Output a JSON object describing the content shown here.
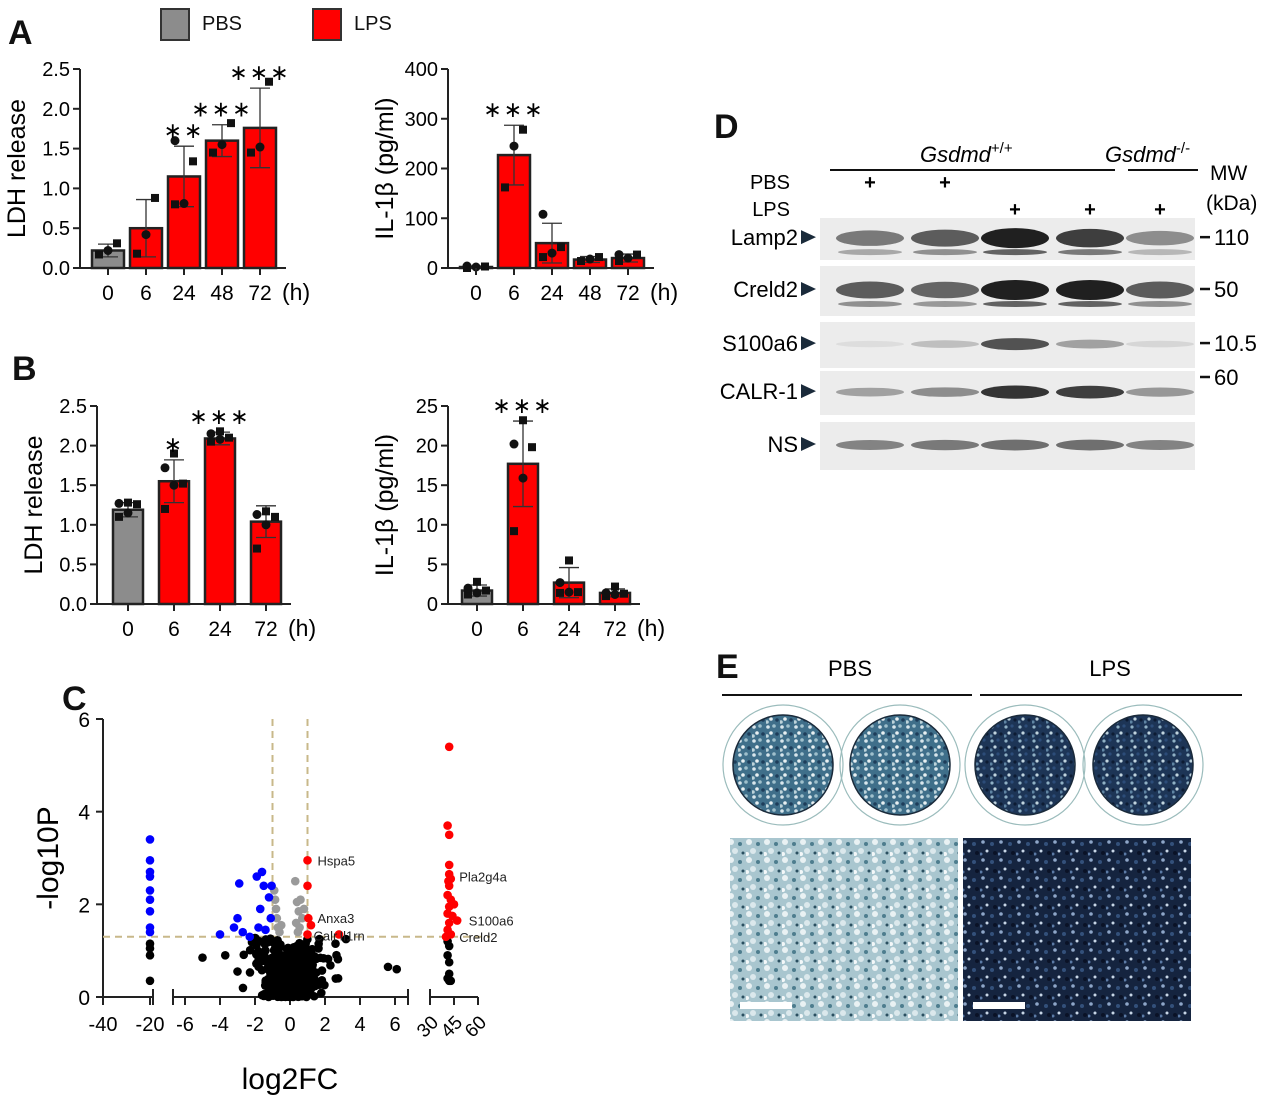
{
  "legend": {
    "items": [
      {
        "label": "PBS",
        "color": "#8c8c8c"
      },
      {
        "label": "LPS",
        "color": "#ff0000"
      }
    ]
  },
  "panels": {
    "A": "A",
    "B": "B",
    "C": "C",
    "D": "D",
    "E": "E"
  },
  "chart_data": [
    {
      "id": "A-left",
      "type": "bar",
      "panel": "A",
      "title": "",
      "xlabel": "(h)",
      "ylabel": "LDH release",
      "categories": [
        "0",
        "6",
        "24",
        "48",
        "72"
      ],
      "values": [
        0.22,
        0.5,
        1.15,
        1.6,
        1.76
      ],
      "errors": [
        0.08,
        0.36,
        0.38,
        0.2,
        0.5
      ],
      "colors": [
        "#8c8c8c",
        "#ff0000",
        "#ff0000",
        "#ff0000",
        "#ff0000"
      ],
      "significance": [
        "",
        "",
        "**",
        "***",
        "***"
      ],
      "points": [
        [
          0.17,
          0.22,
          0.31
        ],
        [
          0.18,
          0.42,
          0.88
        ],
        [
          0.8,
          0.81,
          1.34,
          1.6
        ],
        [
          1.45,
          1.55,
          1.82
        ],
        [
          1.45,
          1.52,
          2.34
        ]
      ],
      "ylim": [
        0,
        2.5
      ],
      "yticks": [
        "0.0",
        "0.5",
        "1.0",
        "1.5",
        "2.0",
        "2.5"
      ]
    },
    {
      "id": "A-right",
      "type": "bar",
      "panel": "A",
      "title": "",
      "xlabel": "(h)",
      "ylabel": "IL-1β (pg/ml)",
      "categories": [
        "0",
        "6",
        "24",
        "48",
        "72"
      ],
      "values": [
        2,
        227,
        50,
        17,
        20
      ],
      "errors": [
        2,
        60,
        40,
        6,
        8
      ],
      "colors": [
        "#8c8c8c",
        "#ff0000",
        "#ff0000",
        "#ff0000",
        "#ff0000"
      ],
      "significance": [
        "",
        "***",
        "",
        "",
        ""
      ],
      "points": [
        [
          0,
          2,
          3,
          4
        ],
        [
          162,
          245,
          278
        ],
        [
          22,
          30,
          42,
          108
        ],
        [
          14,
          18,
          22
        ],
        [
          14,
          20,
          27,
          27
        ]
      ],
      "ylim": [
        0,
        400
      ],
      "yticks": [
        "0",
        "100",
        "200",
        "300",
        "400"
      ]
    },
    {
      "id": "B-left",
      "type": "bar",
      "panel": "B",
      "title": "",
      "xlabel": "(h)",
      "ylabel": "LDH release",
      "categories": [
        "0",
        "6",
        "24",
        "72"
      ],
      "values": [
        1.19,
        1.55,
        2.09,
        1.04
      ],
      "errors": [
        0.09,
        0.27,
        0.08,
        0.2
      ],
      "colors": [
        "#8c8c8c",
        "#ff0000",
        "#ff0000",
        "#ff0000"
      ],
      "significance": [
        "",
        "*",
        "***",
        ""
      ],
      "points": [
        [
          1.1,
          1.15,
          1.26,
          1.27,
          1.28
        ],
        [
          1.2,
          1.5,
          1.52,
          1.72,
          1.9
        ],
        [
          2.05,
          2.08,
          2.1,
          2.15,
          2.18
        ],
        [
          0.7,
          1.0,
          1.1,
          1.13,
          1.17
        ]
      ],
      "ylim": [
        0,
        2.5
      ],
      "yticks": [
        "0.0",
        "0.5",
        "1.0",
        "1.5",
        "2.0",
        "2.5"
      ]
    },
    {
      "id": "B-right",
      "type": "bar",
      "panel": "B",
      "title": "",
      "xlabel": "(h)",
      "ylabel": "IL-1β (pg/ml)",
      "categories": [
        "0",
        "6",
        "24",
        "72"
      ],
      "values": [
        1.7,
        17.7,
        2.7,
        1.4
      ],
      "errors": [
        0.7,
        5.4,
        1.9,
        0.5
      ],
      "colors": [
        "#8c8c8c",
        "#ff0000",
        "#ff0000",
        "#ff0000"
      ],
      "significance": [
        "",
        "***",
        "",
        ""
      ],
      "points": [
        [
          1.2,
          1.4,
          1.7,
          2.0,
          2.8
        ],
        [
          9.2,
          15.9,
          19.8,
          20.2,
          23.2
        ],
        [
          1.4,
          1.5,
          1.5,
          2.7,
          5.5
        ],
        [
          1.0,
          1.2,
          1.3,
          1.4,
          2.2
        ]
      ],
      "ylim": [
        0,
        25
      ],
      "yticks": [
        "0",
        "5",
        "10",
        "15",
        "20",
        "25"
      ]
    },
    {
      "id": "C-volcano",
      "type": "scatter",
      "panel": "C",
      "title": "",
      "xlabel": "log2FC",
      "ylabel": "-log10P",
      "ylim": [
        0,
        6
      ],
      "yticks": [
        "0",
        "2",
        "4",
        "6"
      ],
      "xsegments": [
        {
          "range": [
            -40,
            -20
          ],
          "ticks": [
            "-40",
            "-20"
          ]
        },
        {
          "range": [
            -7,
            7
          ],
          "ticks": [
            "-6",
            "-4",
            "-2",
            "0",
            "2",
            "4",
            "6"
          ]
        },
        {
          "range": [
            30,
            60
          ],
          "ticks": [
            "30",
            "45",
            "60"
          ]
        }
      ],
      "thresholds": {
        "log2fc": [
          -1,
          1
        ],
        "neg_log10p": 1.3
      },
      "groups": [
        {
          "name": "down",
          "color": "#0000ff"
        },
        {
          "name": "up",
          "color": "#ff0000"
        },
        {
          "name": "fc-not-significant",
          "color": "#999999"
        },
        {
          "name": "not-significant",
          "color": "#000000"
        }
      ],
      "labeled_points": [
        {
          "label": "Hspa5",
          "x": 1.0,
          "y": 2.95
        },
        {
          "label": "Anxa3",
          "x": 1.1,
          "y": 1.7
        },
        {
          "label": "Calr",
          "x": 1.0,
          "y": 1.35
        },
        {
          "label": "Il1rn",
          "x": 2.8,
          "y": 1.35
        },
        {
          "label": "Pla2g4a",
          "x": 42,
          "y": 2.6
        },
        {
          "label": "S100a6",
          "x": 48,
          "y": 1.65
        },
        {
          "label": "Creld2",
          "x": 42,
          "y": 1.3
        }
      ],
      "points_blue": [
        [
          -20,
          3.4
        ],
        [
          -20,
          2.95
        ],
        [
          -20,
          2.7
        ],
        [
          -20,
          2.6
        ],
        [
          -20,
          2.3
        ],
        [
          -20,
          2.1
        ],
        [
          -20,
          1.85
        ],
        [
          -20,
          1.5
        ],
        [
          -20,
          1.4
        ],
        [
          -4,
          1.35
        ],
        [
          -3.2,
          1.5
        ],
        [
          -3,
          1.7
        ],
        [
          -2.9,
          2.45
        ],
        [
          -2.7,
          1.4
        ],
        [
          -2.3,
          1.3
        ],
        [
          -1.9,
          2.6
        ],
        [
          -1.8,
          1.5
        ],
        [
          -1.6,
          2.7
        ],
        [
          -1.5,
          2.4
        ],
        [
          -1.7,
          1.9
        ],
        [
          -1.2,
          2.15
        ],
        [
          -1.4,
          1.45
        ],
        [
          -1.1,
          1.7
        ],
        [
          -1.05,
          2.4
        ]
      ],
      "points_red_right": [
        [
          42,
          5.4
        ],
        [
          41,
          3.7
        ],
        [
          42,
          3.5
        ],
        [
          42,
          2.85
        ],
        [
          42,
          2.65
        ],
        [
          43,
          2.55
        ],
        [
          41.5,
          2.5
        ],
        [
          42,
          2.4
        ],
        [
          41,
          2.2
        ],
        [
          43,
          2.1
        ],
        [
          45,
          2.0
        ],
        [
          42,
          1.95
        ],
        [
          41,
          1.8
        ],
        [
          44,
          1.75
        ],
        [
          42,
          1.6
        ],
        [
          47,
          1.65
        ],
        [
          41,
          1.45
        ],
        [
          43,
          1.35
        ],
        [
          40,
          1.3
        ]
      ],
      "points_black_right": [
        [
          41,
          1.2
        ],
        [
          42,
          1.1
        ],
        [
          41,
          0.9
        ],
        [
          42,
          0.75
        ],
        [
          41,
          0.4
        ],
        [
          42,
          0.35
        ],
        [
          43,
          0.35
        ],
        [
          42,
          0.5
        ]
      ],
      "points_black_left": [
        [
          -20,
          1.15
        ],
        [
          -20,
          1.05
        ],
        [
          -20,
          0.9
        ],
        [
          -20,
          0.35
        ]
      ],
      "points_black_mid": [
        [
          -5,
          0.85
        ],
        [
          -3.7,
          0.9
        ],
        [
          -3,
          0.55
        ],
        [
          5.6,
          0.65
        ],
        [
          6.1,
          0.6
        ],
        [
          3.2,
          1.25
        ],
        [
          2.6,
          1.15
        ]
      ]
    }
  ],
  "western_blot": {
    "panel": "D",
    "genotype_labels": [
      {
        "name": "Gsdmd",
        "sup": "+/+"
      },
      {
        "name": "Gsdmd",
        "sup": "-/-"
      }
    ],
    "treatments": [
      {
        "label": "PBS",
        "lanes": [
          "+",
          "+",
          "",
          "",
          ""
        ]
      },
      {
        "label": "LPS",
        "lanes": [
          "",
          "",
          "+",
          "+",
          "+"
        ]
      }
    ],
    "mw_header": [
      "MW",
      "(kDa)"
    ],
    "rows": [
      {
        "label": "Lamp2",
        "mw": "110",
        "intensity": [
          0.55,
          0.7,
          1.0,
          0.85,
          0.45
        ],
        "style": "dark"
      },
      {
        "label": "Creld2",
        "mw": "50",
        "intensity": [
          0.7,
          0.65,
          1.0,
          1.0,
          0.7
        ],
        "style": "dark"
      },
      {
        "label": "S100a6",
        "mw": "10.5",
        "intensity": [
          0.05,
          0.2,
          0.75,
          0.35,
          0.08
        ],
        "style": "grey"
      },
      {
        "label": "CALR-1",
        "mw": "60",
        "intensity": [
          0.35,
          0.45,
          0.9,
          0.85,
          0.4
        ],
        "style": "grey"
      },
      {
        "label": "NS",
        "mw": "",
        "intensity": [
          0.5,
          0.55,
          0.6,
          0.6,
          0.5
        ],
        "style": "light"
      }
    ]
  },
  "staining": {
    "panel": "E",
    "groups": [
      "PBS",
      "LPS"
    ]
  }
}
